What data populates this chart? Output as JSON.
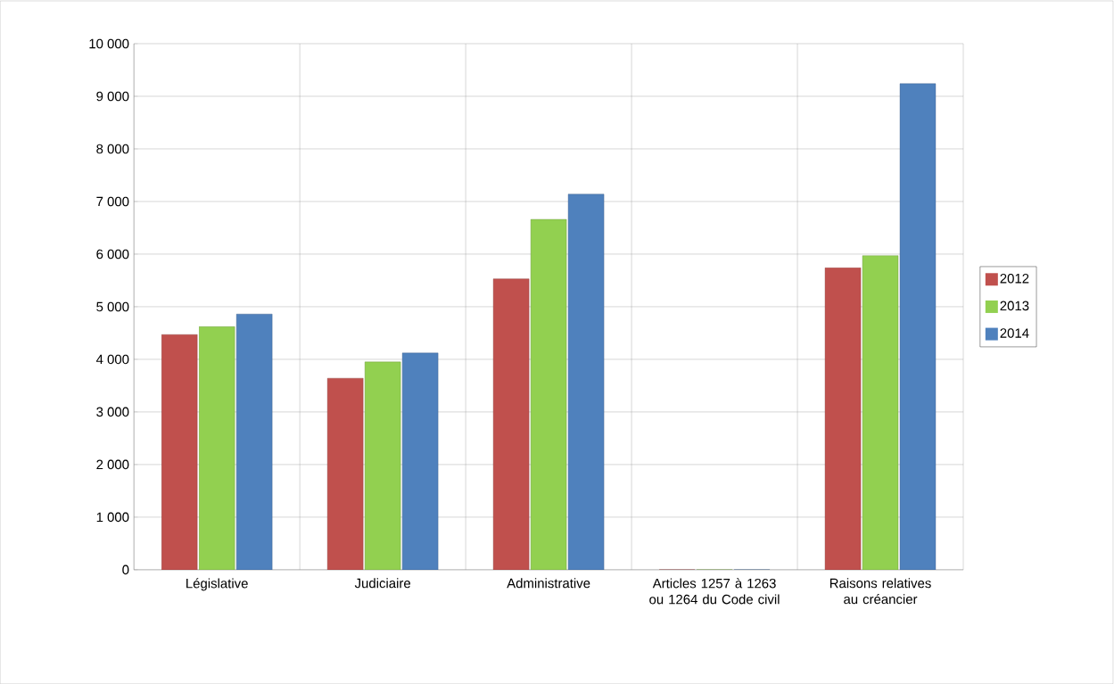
{
  "chart_data": {
    "type": "bar",
    "categories": [
      "Législative",
      "Judiciaire",
      "Administrative",
      "Articles 1257 à 1263 ou 1264 du Code civil",
      "Raisons relatives au créancier"
    ],
    "series": [
      {
        "name": "2012",
        "color": "#c0504d",
        "values": [
          4470,
          3640,
          5530,
          0,
          5740
        ]
      },
      {
        "name": "2013",
        "color": "#92d050",
        "values": [
          4620,
          3950,
          6660,
          0,
          5970
        ]
      },
      {
        "name": "2014",
        "color": "#4f81bd",
        "values": [
          4860,
          4120,
          7140,
          0,
          9240
        ]
      }
    ],
    "ylim": [
      0,
      10000
    ],
    "yticks": [
      0,
      {
        "value": 1000,
        "label": "1 000"
      },
      {
        "value": 2000,
        "label": "2 000"
      },
      {
        "value": 3000,
        "label": "3 000"
      },
      {
        "value": 4000,
        "label": "4 000"
      },
      {
        "value": 5000,
        "label": "5 000"
      },
      {
        "value": 6000,
        "label": "6 000"
      },
      {
        "value": 7000,
        "label": "7 000"
      },
      {
        "value": 8000,
        "label": "8 000"
      },
      {
        "value": 9000,
        "label": "9 000"
      },
      {
        "value": 10000,
        "label": "10 000"
      }
    ],
    "grid": true,
    "legend": "right"
  }
}
